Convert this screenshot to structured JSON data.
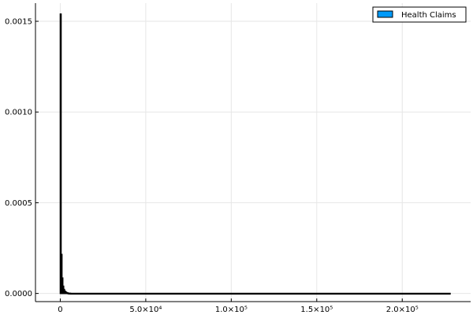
{
  "chart_data": {
    "type": "bar",
    "title": "",
    "xlabel": "",
    "ylabel": "",
    "xlim": [
      -14500,
      240000
    ],
    "ylim": [
      -4.5e-05,
      0.0016
    ],
    "grid": true,
    "legend_position": "top-right",
    "x_ticks": [
      {
        "value": 0,
        "label": "0"
      },
      {
        "value": 50000,
        "label": "5.0×10⁴"
      },
      {
        "value": 100000,
        "label": "1.0×10⁵"
      },
      {
        "value": 150000,
        "label": "1.5×10⁵"
      },
      {
        "value": 200000,
        "label": "2.0×10⁵"
      }
    ],
    "y_ticks": [
      {
        "value": 0,
        "label": "0.0000"
      },
      {
        "value": 0.0005,
        "label": "0.0005"
      },
      {
        "value": 0.001,
        "label": "0.0010"
      },
      {
        "value": 0.0015,
        "label": "0.0015"
      }
    ],
    "series": [
      {
        "name": "Health Claims",
        "color": "#009af9",
        "bin_edges": [
          0,
          500,
          1000,
          1500,
          2000,
          2500,
          3000,
          3500,
          4000,
          4500,
          5000,
          6000,
          228000
        ],
        "values": [
          0.00154,
          0.000215,
          8.5e-05,
          4e-05,
          2.2e-05,
          1.3e-05,
          8e-06,
          5e-06,
          3e-06,
          2e-06,
          1e-06,
          4e-07
        ]
      }
    ]
  }
}
